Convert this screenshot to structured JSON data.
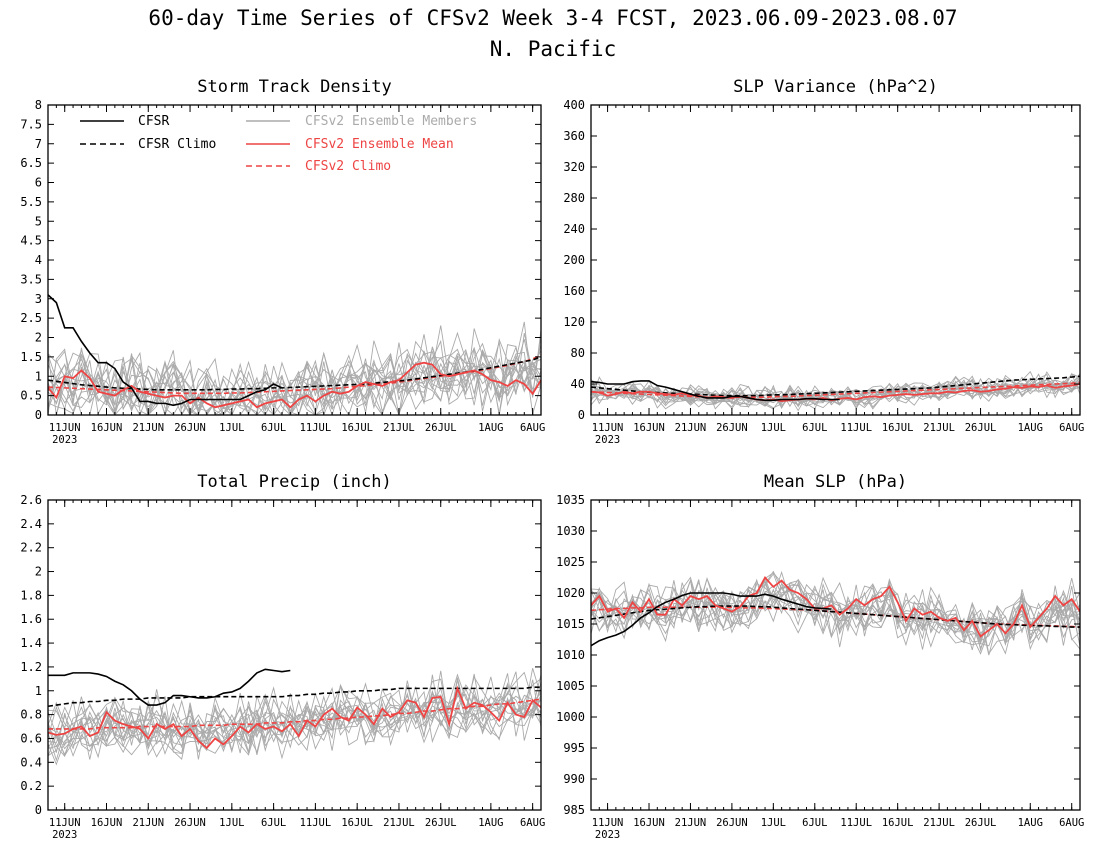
{
  "figure": {
    "title_line1": "60-day Time Series of CFSv2 Week 3-4 FCST, 2023.06.09-2023.08.07",
    "title_line2": "N. Pacific"
  },
  "legend": {
    "items": [
      {
        "label": "CFSR",
        "color": "#000000",
        "dashed": false
      },
      {
        "label": "CFSR Climo",
        "color": "#000000",
        "dashed": true
      },
      {
        "label": "CFSv2 Ensemble Members",
        "color": "#aaaaaa",
        "dashed": false
      },
      {
        "label": "CFSv2 Ensemble Mean",
        "color": "#ee4444",
        "dashed": false
      },
      {
        "label": "CFSv2 Climo",
        "color": "#ee4444",
        "dashed": true
      }
    ]
  },
  "colors": {
    "cfsr": "#000000",
    "members": "#aaaaaa",
    "mean": "#ee4444",
    "climo_red": "#ee4444"
  },
  "chart_data": [
    {
      "type": "line",
      "title": "Storm Track Density",
      "xlim": [
        0,
        59
      ],
      "ylim": [
        0,
        8
      ],
      "yticks": [
        "0",
        "0.5",
        "1",
        "1.5",
        "2",
        "2.5",
        "3",
        "3.5",
        "4",
        "4.5",
        "5",
        "5.5",
        "6",
        "6.5",
        "7",
        "7.5",
        "8"
      ],
      "xticks": [
        {
          "day": 2,
          "label": "11JUN",
          "year": "2023"
        },
        {
          "day": 7,
          "label": "16JUN"
        },
        {
          "day": 12,
          "label": "21JUN"
        },
        {
          "day": 17,
          "label": "26JUN"
        },
        {
          "day": 22,
          "label": "1JUL"
        },
        {
          "day": 27,
          "label": "6JUL"
        },
        {
          "day": 32,
          "label": "11JUL"
        },
        {
          "day": 37,
          "label": "16JUL"
        },
        {
          "day": 42,
          "label": "21JUL"
        },
        {
          "day": 47,
          "label": "26JUL"
        },
        {
          "day": 53,
          "label": "1AUG"
        },
        {
          "day": 58,
          "label": "6AUG"
        }
      ],
      "cfsr": [
        3.1,
        2.9,
        2.25,
        2.25,
        1.9,
        1.6,
        1.35,
        1.35,
        1.2,
        0.85,
        0.7,
        0.35,
        0.35,
        0.3,
        0.3,
        0.25,
        0.3,
        0.4,
        0.4,
        0.4,
        0.4,
        0.4,
        0.4,
        0.4,
        0.5,
        0.6,
        0.65,
        0.8,
        0.7
      ],
      "cfsr_climo": [
        0.9,
        0.87,
        0.84,
        0.81,
        0.78,
        0.76,
        0.74,
        0.72,
        0.7,
        0.69,
        0.68,
        0.67,
        0.66,
        0.65,
        0.65,
        0.65,
        0.65,
        0.65,
        0.65,
        0.65,
        0.66,
        0.66,
        0.67,
        0.67,
        0.68,
        0.68,
        0.69,
        0.7,
        0.7,
        0.71,
        0.72,
        0.73,
        0.74,
        0.75,
        0.76,
        0.77,
        0.78,
        0.79,
        0.8,
        0.82,
        0.84,
        0.86,
        0.88,
        0.9,
        0.93,
        0.96,
        0.99,
        1.02,
        1.05,
        1.08,
        1.11,
        1.14,
        1.18,
        1.22,
        1.26,
        1.3,
        1.34,
        1.38,
        1.42,
        1.5
      ],
      "mean": [
        0.7,
        0.45,
        1.0,
        0.95,
        1.15,
        0.95,
        0.6,
        0.55,
        0.5,
        0.65,
        0.75,
        0.6,
        0.55,
        0.5,
        0.45,
        0.5,
        0.5,
        0.3,
        0.45,
        0.3,
        0.2,
        0.25,
        0.3,
        0.35,
        0.4,
        0.2,
        0.3,
        0.35,
        0.4,
        0.2,
        0.4,
        0.5,
        0.35,
        0.5,
        0.6,
        0.55,
        0.6,
        0.75,
        0.85,
        0.8,
        0.75,
        0.85,
        0.9,
        1.1,
        1.3,
        1.35,
        1.3,
        1.05,
        1.0,
        1.05,
        1.1,
        1.15,
        1.05,
        0.9,
        0.85,
        0.75,
        0.9,
        0.8,
        0.55,
        0.9
      ],
      "model_climo": [
        0.72,
        0.71,
        0.7,
        0.69,
        0.68,
        0.67,
        0.66,
        0.65,
        0.64,
        0.63,
        0.62,
        0.61,
        0.6,
        0.59,
        0.58,
        0.57,
        0.56,
        0.56,
        0.56,
        0.56,
        0.56,
        0.56,
        0.57,
        0.57,
        0.58,
        0.59,
        0.6,
        0.61,
        0.62,
        0.63,
        0.64,
        0.65,
        0.66,
        0.67,
        0.68,
        0.7,
        0.72,
        0.74,
        0.76,
        0.78,
        0.8,
        0.82,
        0.85,
        0.88,
        0.91,
        0.94,
        0.97,
        1.0,
        1.03,
        1.06,
        1.09,
        1.12,
        1.16,
        1.2,
        1.24,
        1.28,
        1.33,
        1.38,
        1.45,
        1.55
      ],
      "members_spread": 0.45,
      "members_count": 16,
      "members_seed": 11
    },
    {
      "type": "line",
      "title": "SLP Variance (hPa^2)",
      "xlim": [
        0,
        59
      ],
      "ylim": [
        0,
        400
      ],
      "yticks": [
        "0",
        "40",
        "80",
        "120",
        "160",
        "200",
        "240",
        "280",
        "320",
        "360",
        "400"
      ],
      "xticks": [
        {
          "day": 2,
          "label": "11JUN",
          "year": "2023"
        },
        {
          "day": 7,
          "label": "16JUN"
        },
        {
          "day": 12,
          "label": "21JUN"
        },
        {
          "day": 17,
          "label": "26JUN"
        },
        {
          "day": 22,
          "label": "1JUL"
        },
        {
          "day": 27,
          "label": "6JUL"
        },
        {
          "day": 32,
          "label": "11JUL"
        },
        {
          "day": 37,
          "label": "16JUL"
        },
        {
          "day": 42,
          "label": "21JUL"
        },
        {
          "day": 47,
          "label": "26JUL"
        },
        {
          "day": 53,
          "label": "1AUG"
        },
        {
          "day": 58,
          "label": "6AUG"
        }
      ],
      "cfsr": [
        43,
        42,
        40,
        40,
        40,
        43,
        44,
        44,
        38,
        36,
        33,
        30,
        27,
        24,
        22,
        22,
        22,
        24,
        24,
        22,
        20,
        19,
        19,
        20,
        20,
        20,
        21,
        21,
        20,
        20,
        20
      ],
      "cfsr_climo": [
        36,
        35,
        34,
        33,
        32,
        31,
        30,
        29.5,
        29,
        28.5,
        28,
        27.5,
        27,
        26.5,
        26,
        25.5,
        25,
        25,
        25,
        25,
        25,
        25.5,
        26,
        26,
        26.5,
        27,
        27.5,
        28,
        28.5,
        29,
        29.5,
        30,
        30.5,
        31,
        31.5,
        32,
        32.5,
        33,
        33.5,
        34,
        34.5,
        35,
        36,
        37,
        38,
        39,
        40,
        41,
        42,
        43,
        44,
        45,
        45.5,
        46,
        46.5,
        47,
        47.5,
        48,
        49,
        50
      ],
      "mean": [
        30,
        29,
        25,
        27,
        30,
        28,
        30,
        30,
        28,
        27,
        26,
        28,
        25,
        25,
        22,
        24,
        23,
        22,
        24,
        22,
        20,
        19,
        20,
        18,
        19,
        20,
        21,
        20,
        22,
        19,
        21,
        22,
        20,
        23,
        24,
        23,
        25,
        26,
        27,
        26,
        27,
        28,
        28,
        30,
        29,
        31,
        32,
        30,
        31,
        33,
        34,
        36,
        35,
        37,
        36,
        38,
        35,
        37,
        38,
        40
      ],
      "model_climo": [
        30,
        29.5,
        29,
        28.5,
        28,
        27.5,
        27,
        26.5,
        26,
        25.5,
        25,
        24.5,
        24,
        23.5,
        23,
        23,
        23,
        23,
        23,
        23,
        23,
        23,
        23.5,
        24,
        24,
        24.5,
        25,
        25.5,
        26,
        26.5,
        27,
        27.5,
        28,
        28.5,
        29,
        29.5,
        30,
        30.5,
        31,
        31.5,
        32,
        32.5,
        33,
        33.5,
        34,
        34.5,
        35,
        35.5,
        36,
        36.5,
        37,
        37.5,
        38,
        38.5,
        39,
        39.5,
        40,
        40.5,
        41,
        42
      ],
      "members_spread": 7,
      "members_count": 16,
      "members_seed": 23
    },
    {
      "type": "line",
      "title": "Total Precip (inch)",
      "xlim": [
        0,
        59
      ],
      "ylim": [
        0,
        2.6
      ],
      "yticks": [
        "0",
        "0.2",
        "0.4",
        "0.6",
        "0.8",
        "1",
        "1.2",
        "1.4",
        "1.6",
        "1.8",
        "2",
        "2.2",
        "2.4",
        "2.6"
      ],
      "xticks": [
        {
          "day": 2,
          "label": "11JUN",
          "year": "2023"
        },
        {
          "day": 7,
          "label": "16JUN"
        },
        {
          "day": 12,
          "label": "21JUN"
        },
        {
          "day": 17,
          "label": "26JUN"
        },
        {
          "day": 22,
          "label": "1JUL"
        },
        {
          "day": 27,
          "label": "6JUL"
        },
        {
          "day": 32,
          "label": "11JUL"
        },
        {
          "day": 37,
          "label": "16JUL"
        },
        {
          "day": 42,
          "label": "21JUL"
        },
        {
          "day": 47,
          "label": "26JUL"
        },
        {
          "day": 53,
          "label": "1AUG"
        },
        {
          "day": 58,
          "label": "6AUG"
        }
      ],
      "cfsr": [
        1.13,
        1.13,
        1.13,
        1.15,
        1.15,
        1.15,
        1.14,
        1.12,
        1.08,
        1.05,
        1.0,
        0.93,
        0.88,
        0.88,
        0.9,
        0.96,
        0.96,
        0.95,
        0.94,
        0.94,
        0.95,
        0.98,
        0.99,
        1.02,
        1.08,
        1.15,
        1.18,
        1.17,
        1.16,
        1.17
      ],
      "cfsr_climo": [
        0.87,
        0.88,
        0.89,
        0.9,
        0.9,
        0.91,
        0.91,
        0.92,
        0.92,
        0.93,
        0.93,
        0.93,
        0.94,
        0.94,
        0.94,
        0.94,
        0.94,
        0.95,
        0.95,
        0.95,
        0.95,
        0.95,
        0.95,
        0.95,
        0.95,
        0.95,
        0.95,
        0.95,
        0.95,
        0.96,
        0.96,
        0.97,
        0.97,
        0.98,
        0.98,
        0.99,
        0.99,
        1.0,
        1.0,
        1.0,
        1.01,
        1.01,
        1.02,
        1.02,
        1.02,
        1.02,
        1.02,
        1.02,
        1.02,
        1.02,
        1.02,
        1.02,
        1.02,
        1.02,
        1.02,
        1.02,
        1.02,
        1.02,
        1.03,
        1.03
      ],
      "mean": [
        0.65,
        0.63,
        0.64,
        0.68,
        0.7,
        0.62,
        0.65,
        0.82,
        0.75,
        0.72,
        0.7,
        0.68,
        0.6,
        0.72,
        0.68,
        0.72,
        0.62,
        0.68,
        0.58,
        0.52,
        0.6,
        0.55,
        0.62,
        0.7,
        0.65,
        0.72,
        0.68,
        0.7,
        0.66,
        0.72,
        0.62,
        0.75,
        0.7,
        0.8,
        0.85,
        0.78,
        0.75,
        0.86,
        0.8,
        0.72,
        0.85,
        0.78,
        0.82,
        0.92,
        0.9,
        0.78,
        0.94,
        0.95,
        0.72,
        1.02,
        0.85,
        0.9,
        0.88,
        0.82,
        0.75,
        0.9,
        0.8,
        0.78,
        0.92,
        0.86
      ],
      "model_climo": [
        0.68,
        0.68,
        0.68,
        0.68,
        0.68,
        0.68,
        0.69,
        0.69,
        0.69,
        0.69,
        0.69,
        0.7,
        0.7,
        0.7,
        0.7,
        0.7,
        0.7,
        0.7,
        0.71,
        0.71,
        0.71,
        0.71,
        0.72,
        0.72,
        0.72,
        0.72,
        0.73,
        0.73,
        0.73,
        0.74,
        0.74,
        0.75,
        0.75,
        0.76,
        0.76,
        0.77,
        0.77,
        0.78,
        0.78,
        0.79,
        0.79,
        0.8,
        0.81,
        0.81,
        0.82,
        0.83,
        0.83,
        0.84,
        0.85,
        0.85,
        0.86,
        0.87,
        0.87,
        0.88,
        0.89,
        0.89,
        0.9,
        0.91,
        0.92,
        0.93
      ],
      "members_spread": 0.12,
      "members_count": 16,
      "members_seed": 37
    },
    {
      "type": "line",
      "title": "Mean SLP (hPa)",
      "xlim": [
        0,
        59
      ],
      "ylim": [
        985,
        1035
      ],
      "yticks": [
        "985",
        "990",
        "995",
        "1000",
        "1005",
        "1010",
        "1015",
        "1020",
        "1025",
        "1030",
        "1035"
      ],
      "xticks": [
        {
          "day": 2,
          "label": "11JUN",
          "year": "2023"
        },
        {
          "day": 7,
          "label": "16JUN"
        },
        {
          "day": 12,
          "label": "21JUN"
        },
        {
          "day": 17,
          "label": "26JUN"
        },
        {
          "day": 22,
          "label": "1JUL"
        },
        {
          "day": 27,
          "label": "6JUL"
        },
        {
          "day": 32,
          "label": "11JUL"
        },
        {
          "day": 37,
          "label": "16JUL"
        },
        {
          "day": 42,
          "label": "21JUL"
        },
        {
          "day": 47,
          "label": "26JUL"
        },
        {
          "day": 53,
          "label": "1AUG"
        },
        {
          "day": 58,
          "label": "6AUG"
        }
      ],
      "cfsr": [
        1011.5,
        1012.3,
        1012.8,
        1013.2,
        1013.8,
        1014.8,
        1016.0,
        1016.8,
        1017.8,
        1018.5,
        1019.0,
        1019.6,
        1020.0,
        1020.0,
        1020.0,
        1020.0,
        1020.0,
        1019.8,
        1019.5,
        1019.5,
        1019.5,
        1019.8,
        1019.5,
        1019.0,
        1018.6,
        1018.2,
        1017.8,
        1017.6,
        1017.5,
        1017.4
      ],
      "cfsr_climo": [
        1015.8,
        1016.0,
        1016.2,
        1016.4,
        1016.6,
        1016.8,
        1017.0,
        1017.2,
        1017.3,
        1017.4,
        1017.5,
        1017.6,
        1017.7,
        1017.8,
        1017.8,
        1017.9,
        1017.9,
        1017.9,
        1017.9,
        1017.9,
        1017.8,
        1017.8,
        1017.7,
        1017.6,
        1017.5,
        1017.4,
        1017.3,
        1017.2,
        1017.1,
        1017.0,
        1016.9,
        1016.8,
        1016.7,
        1016.6,
        1016.5,
        1016.4,
        1016.3,
        1016.2,
        1016.1,
        1016.0,
        1015.9,
        1015.8,
        1015.7,
        1015.6,
        1015.5,
        1015.4,
        1015.3,
        1015.2,
        1015.1,
        1015.0,
        1014.9,
        1014.9,
        1014.8,
        1014.8,
        1014.7,
        1014.7,
        1014.6,
        1014.6,
        1014.5,
        1014.5
      ],
      "mean": [
        1018,
        1019.5,
        1017,
        1017.5,
        1016,
        1018.5,
        1017,
        1019,
        1016.5,
        1016.5,
        1019,
        1018,
        1019.5,
        1019,
        1019.5,
        1018,
        1017.5,
        1017,
        1017.8,
        1019.5,
        1020,
        1022.5,
        1021,
        1022,
        1020.5,
        1020,
        1019,
        1017.5,
        1017.5,
        1018,
        1016.5,
        1017.5,
        1019,
        1018,
        1019,
        1019.5,
        1021,
        1018.5,
        1015.5,
        1017.5,
        1016.5,
        1017,
        1016,
        1015.5,
        1016,
        1014,
        1015.5,
        1013,
        1014,
        1015,
        1013.5,
        1015,
        1018,
        1014.5,
        1016,
        1017.5,
        1019.5,
        1018,
        1019,
        1017
      ],
      "model_climo": [
        1017.2,
        1017.3,
        1017.4,
        1017.5,
        1017.5,
        1017.6,
        1017.6,
        1017.7,
        1017.7,
        1017.7,
        1017.7,
        1017.7,
        1017.7,
        1017.7,
        1017.7,
        1017.7,
        1017.7,
        1017.7,
        1017.6,
        1017.6,
        1017.6,
        1017.5,
        1017.5,
        1017.4,
        1017.4,
        1017.3,
        1017.3,
        1017.2,
        1017.1,
        1017.0,
        1016.9,
        1016.8,
        1016.7,
        1016.6,
        1016.5,
        1016.4,
        1016.3,
        1016.2,
        1016.1,
        1016.0,
        1015.9,
        1015.8,
        1015.7,
        1015.6,
        1015.5,
        1015.4,
        1015.3,
        1015.2,
        1015.1,
        1015.0,
        1015.0,
        1014.9,
        1014.9,
        1014.8,
        1014.8,
        1014.7,
        1014.7,
        1014.6,
        1014.6,
        1014.5
      ],
      "members_spread": 2.0,
      "members_count": 16,
      "members_seed": 53
    }
  ]
}
